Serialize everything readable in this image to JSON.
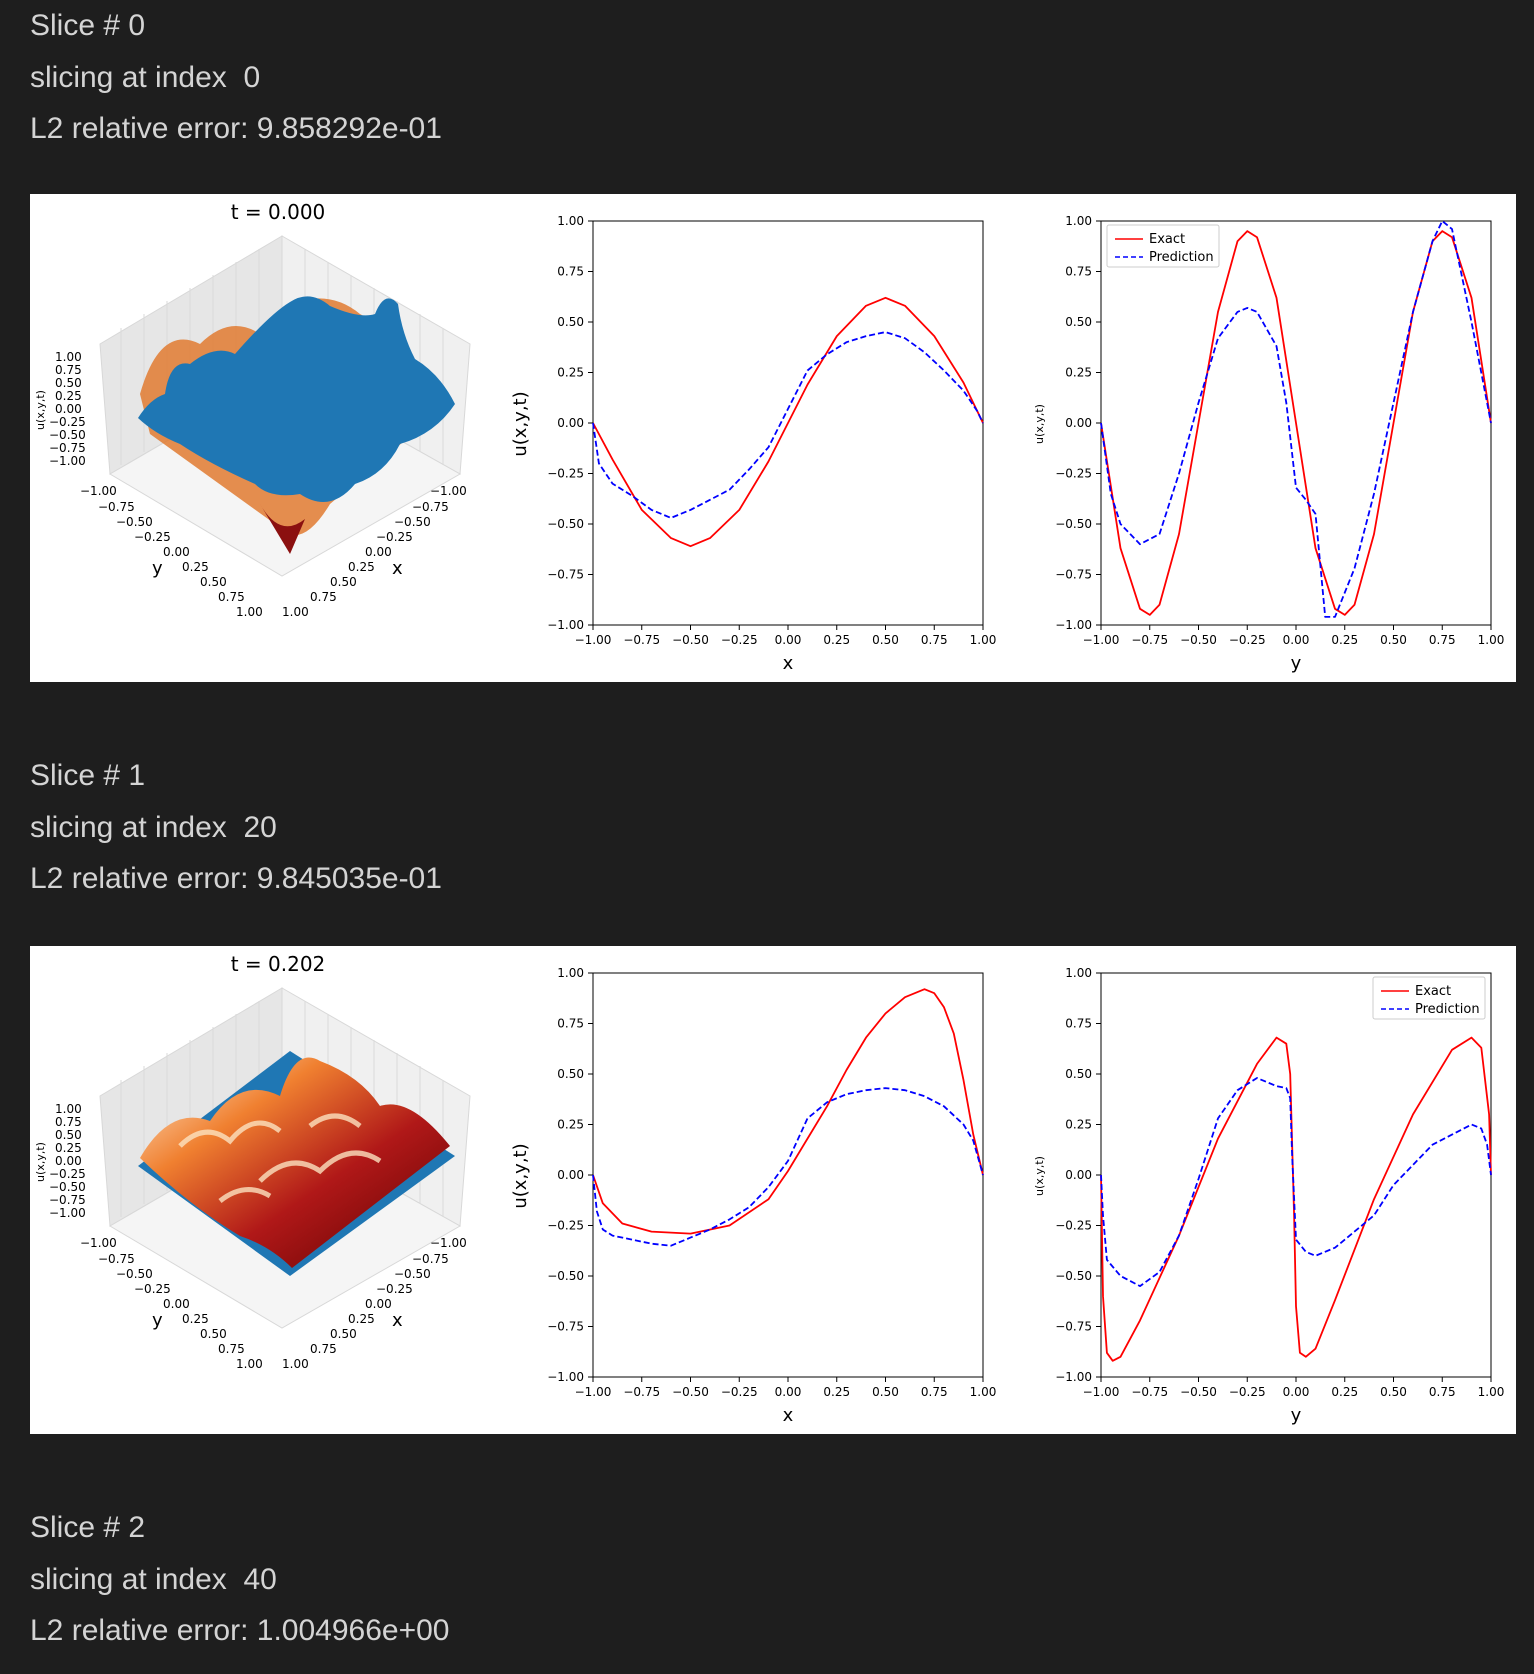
{
  "slices": [
    {
      "line1": "Slice # 0",
      "line2": "slicing at index  0",
      "line3": "L2 relative error: 9.858292e-01",
      "surface_title": "t = 0.000",
      "legend_position": "upper left"
    },
    {
      "line1": "Slice # 1",
      "line2": "slicing at index  20",
      "line3": "L2 relative error: 9.845035e-01",
      "surface_title": "t = 0.202",
      "legend_position": "upper right"
    },
    {
      "line1": "Slice # 2",
      "line2": "slicing at index  40",
      "line3": "L2 relative error: 1.004966e+00"
    }
  ],
  "axis_text": {
    "u_label": "u(x,y,t)",
    "x_label": "x",
    "y_label": "y",
    "ticks": [
      "-1.00",
      "-0.75",
      "-0.50",
      "-0.25",
      "0.00",
      "0.25",
      "0.50",
      "0.75",
      "1.00"
    ],
    "legend_exact": "Exact",
    "legend_prediction": "Prediction"
  },
  "colors": {
    "background": "#1e1e1e",
    "text": "#d4d4d4",
    "exact": "#ff0000",
    "prediction": "#0000ff",
    "surface_pred": "#1f77b4"
  },
  "chart_data": [
    {
      "type": "line",
      "slice": 0,
      "panel": "x-slice",
      "xlabel": "x",
      "ylabel": "u(x,y,t)",
      "xlim": [
        -1,
        1
      ],
      "ylim": [
        -1,
        1
      ],
      "series": [
        {
          "name": "Exact",
          "style": "solid",
          "x": [
            -1,
            -0.9,
            -0.75,
            -0.6,
            -0.5,
            -0.4,
            -0.25,
            -0.1,
            0,
            0.1,
            0.25,
            0.4,
            0.5,
            0.6,
            0.75,
            0.9,
            1
          ],
          "y": [
            0,
            -0.18,
            -0.43,
            -0.57,
            -0.61,
            -0.57,
            -0.43,
            -0.19,
            0,
            0.19,
            0.43,
            0.58,
            0.62,
            0.58,
            0.43,
            0.2,
            0
          ]
        },
        {
          "name": "Prediction",
          "style": "dashed",
          "x": [
            -1,
            -0.97,
            -0.9,
            -0.8,
            -0.7,
            -0.6,
            -0.5,
            -0.4,
            -0.3,
            -0.2,
            -0.1,
            0,
            0.1,
            0.2,
            0.3,
            0.4,
            0.5,
            0.6,
            0.7,
            0.8,
            0.9,
            0.97,
            1
          ],
          "y": [
            0,
            -0.2,
            -0.3,
            -0.36,
            -0.43,
            -0.47,
            -0.43,
            -0.38,
            -0.33,
            -0.23,
            -0.12,
            0.07,
            0.26,
            0.34,
            0.4,
            0.43,
            0.45,
            0.42,
            0.35,
            0.26,
            0.16,
            0.06,
            0
          ]
        }
      ]
    },
    {
      "type": "line",
      "slice": 0,
      "panel": "y-slice",
      "xlabel": "y",
      "ylabel": "u(x,y,t)",
      "xlim": [
        -1,
        1
      ],
      "ylim": [
        -1,
        1
      ],
      "legend": "upper left",
      "series": [
        {
          "name": "Exact",
          "style": "solid",
          "x": [
            -1,
            -0.9,
            -0.8,
            -0.75,
            -0.7,
            -0.6,
            -0.5,
            -0.4,
            -0.3,
            -0.25,
            -0.2,
            -0.1,
            0,
            0.1,
            0.2,
            0.25,
            0.3,
            0.4,
            0.5,
            0.6,
            0.7,
            0.75,
            0.8,
            0.9,
            1
          ],
          "y": [
            0,
            -0.62,
            -0.92,
            -0.95,
            -0.9,
            -0.55,
            0,
            0.55,
            0.9,
            0.95,
            0.92,
            0.62,
            0,
            -0.62,
            -0.92,
            -0.95,
            -0.9,
            -0.55,
            0,
            0.55,
            0.9,
            0.95,
            0.92,
            0.62,
            0
          ]
        },
        {
          "name": "Prediction",
          "style": "dashed",
          "x": [
            -1,
            -0.95,
            -0.9,
            -0.8,
            -0.7,
            -0.6,
            -0.5,
            -0.4,
            -0.3,
            -0.25,
            -0.2,
            -0.1,
            -0.05,
            0,
            0.05,
            0.1,
            0.15,
            0.2,
            0.3,
            0.4,
            0.5,
            0.6,
            0.7,
            0.75,
            0.8,
            0.9,
            1
          ],
          "y": [
            0,
            -0.35,
            -0.5,
            -0.6,
            -0.55,
            -0.25,
            0.1,
            0.42,
            0.55,
            0.57,
            0.55,
            0.38,
            0.1,
            -0.32,
            -0.38,
            -0.45,
            -0.96,
            -0.96,
            -0.72,
            -0.35,
            0.1,
            0.55,
            0.9,
            1.0,
            0.96,
            0.5,
            0
          ]
        }
      ]
    },
    {
      "type": "line",
      "slice": 1,
      "panel": "x-slice",
      "xlabel": "x",
      "ylabel": "u(x,y,t)",
      "xlim": [
        -1,
        1
      ],
      "ylim": [
        -1,
        1
      ],
      "series": [
        {
          "name": "Exact",
          "style": "solid",
          "x": [
            -1,
            -0.95,
            -0.85,
            -0.7,
            -0.5,
            -0.3,
            -0.1,
            0,
            0.1,
            0.2,
            0.3,
            0.4,
            0.5,
            0.6,
            0.7,
            0.75,
            0.8,
            0.85,
            0.9,
            0.95,
            1
          ],
          "y": [
            0,
            -0.14,
            -0.24,
            -0.28,
            -0.29,
            -0.25,
            -0.12,
            0.02,
            0.18,
            0.34,
            0.52,
            0.68,
            0.8,
            0.88,
            0.92,
            0.9,
            0.83,
            0.7,
            0.47,
            0.2,
            0
          ]
        },
        {
          "name": "Prediction",
          "style": "dashed",
          "x": [
            -1,
            -0.98,
            -0.95,
            -0.9,
            -0.8,
            -0.7,
            -0.6,
            -0.5,
            -0.4,
            -0.3,
            -0.2,
            -0.1,
            0,
            0.1,
            0.2,
            0.3,
            0.4,
            0.5,
            0.6,
            0.7,
            0.8,
            0.9,
            0.95,
            1
          ],
          "y": [
            0,
            -0.18,
            -0.27,
            -0.3,
            -0.32,
            -0.34,
            -0.35,
            -0.31,
            -0.27,
            -0.22,
            -0.16,
            -0.06,
            0.07,
            0.28,
            0.36,
            0.4,
            0.42,
            0.43,
            0.42,
            0.39,
            0.34,
            0.25,
            0.17,
            0
          ]
        }
      ]
    },
    {
      "type": "line",
      "slice": 1,
      "panel": "y-slice",
      "xlabel": "y",
      "ylabel": "u(x,y,t)",
      "xlim": [
        -1,
        1
      ],
      "ylim": [
        -1,
        1
      ],
      "legend": "upper right",
      "series": [
        {
          "name": "Exact",
          "style": "solid",
          "x": [
            -1,
            -0.99,
            -0.97,
            -0.94,
            -0.9,
            -0.8,
            -0.6,
            -0.4,
            -0.2,
            -0.1,
            -0.05,
            -0.03,
            -0.01,
            0,
            0.02,
            0.05,
            0.1,
            0.2,
            0.4,
            0.6,
            0.8,
            0.9,
            0.95,
            0.99,
            1
          ],
          "y": [
            0,
            -0.6,
            -0.88,
            -0.92,
            -0.9,
            -0.72,
            -0.3,
            0.18,
            0.55,
            0.68,
            0.65,
            0.5,
            -0.2,
            -0.65,
            -0.88,
            -0.9,
            -0.86,
            -0.62,
            -0.12,
            0.3,
            0.62,
            0.68,
            0.63,
            0.3,
            0
          ]
        },
        {
          "name": "Prediction",
          "style": "dashed",
          "x": [
            -1,
            -0.99,
            -0.97,
            -0.9,
            -0.8,
            -0.7,
            -0.6,
            -0.5,
            -0.4,
            -0.3,
            -0.2,
            -0.1,
            -0.05,
            -0.03,
            -0.02,
            0,
            0.05,
            0.1,
            0.2,
            0.3,
            0.4,
            0.5,
            0.6,
            0.7,
            0.8,
            0.9,
            0.95,
            0.98,
            1
          ],
          "y": [
            0,
            -0.2,
            -0.42,
            -0.5,
            -0.55,
            -0.48,
            -0.3,
            -0.02,
            0.28,
            0.42,
            0.48,
            0.44,
            0.43,
            0.38,
            0.1,
            -0.32,
            -0.38,
            -0.4,
            -0.36,
            -0.28,
            -0.2,
            -0.05,
            0.05,
            0.15,
            0.2,
            0.25,
            0.23,
            0.15,
            0
          ]
        }
      ]
    }
  ]
}
